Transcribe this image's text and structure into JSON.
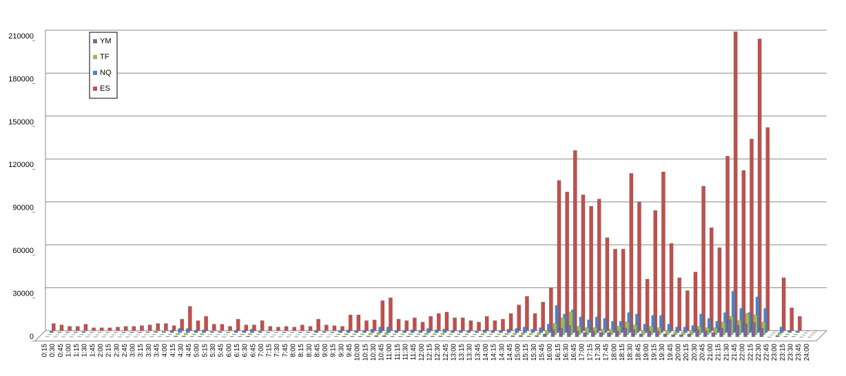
{
  "chart_data": {
    "type": "bar3d",
    "categories": [
      "0:15",
      "0:30",
      "0:45",
      "1:00",
      "1:15",
      "1:30",
      "1:45",
      "2:00",
      "2:15",
      "2:30",
      "2:45",
      "3:00",
      "3:15",
      "3:30",
      "3:45",
      "4:00",
      "4:15",
      "4:30",
      "4:45",
      "5:00",
      "5:15",
      "5:30",
      "5:45",
      "6:00",
      "6:15",
      "6:30",
      "6:45",
      "7:00",
      "7:15",
      "7:30",
      "7:45",
      "8:00",
      "8:15",
      "8:30",
      "8:45",
      "9:00",
      "9:15",
      "9:30",
      "9:45",
      "10:00",
      "10:15",
      "10:30",
      "10:45",
      "11:00",
      "11:15",
      "11:30",
      "11:45",
      "12:00",
      "12:15",
      "12:30",
      "12:45",
      "13:00",
      "13:15",
      "13:30",
      "13:45",
      "14:00",
      "14:15",
      "14:30",
      "14:45",
      "15:00",
      "15:15",
      "15:30",
      "15:45",
      "16:00",
      "16:15",
      "16:30",
      "16:45",
      "17:00",
      "17:15",
      "17:30",
      "17:45",
      "18:00",
      "18:15",
      "18:30",
      "18:45",
      "19:00",
      "19:15",
      "19:30",
      "19:45",
      "20:00",
      "20:15",
      "20:30",
      "20:45",
      "21:00",
      "21:15",
      "21:30",
      "21:45",
      "22:00",
      "22:15",
      "22:30",
      "22:45",
      "23:00",
      "23:15",
      "23:30",
      "23:45",
      "24:00"
    ],
    "series": [
      {
        "name": "YM",
        "color": "#8064a2",
        "values": [
          200,
          100,
          100,
          100,
          200,
          100,
          100,
          100,
          100,
          100,
          100,
          100,
          100,
          200,
          200,
          300,
          600,
          600,
          300,
          400,
          200,
          200,
          100,
          300,
          300,
          500,
          200,
          100,
          100,
          100,
          100,
          100,
          100,
          300,
          200,
          100,
          300,
          500,
          400,
          400,
          600,
          900,
          900,
          400,
          400,
          500,
          400,
          700,
          500,
          600,
          400,
          400,
          400,
          300,
          500,
          400,
          400,
          600,
          800,
          1000,
          600,
          1000,
          2000,
          5000,
          6000,
          8000,
          4000,
          3000,
          4000,
          3000,
          3000,
          4000,
          6000,
          5000,
          2000,
          4000,
          4000,
          2000,
          1500,
          1500,
          2000,
          5000,
          4000,
          3000,
          6000,
          12000,
          8000,
          9000,
          10000,
          6000,
          0,
          1000,
          400,
          300,
          0,
          0
        ]
      },
      {
        "name": "TF",
        "color": "#9bbb59",
        "values": [
          300,
          200,
          200,
          200,
          300,
          100,
          100,
          100,
          100,
          200,
          200,
          200,
          200,
          300,
          300,
          500,
          1000,
          1000,
          500,
          800,
          300,
          300,
          200,
          500,
          500,
          800,
          400,
          200,
          100,
          200,
          100,
          200,
          200,
          500,
          300,
          200,
          500,
          800,
          600,
          600,
          1000,
          1500,
          1500,
          600,
          600,
          800,
          600,
          1200,
          800,
          1000,
          600,
          600,
          600,
          400,
          800,
          600,
          600,
          1000,
          1200,
          1500,
          1000,
          1500,
          3000,
          8000,
          12000,
          16000,
          6000,
          5000,
          5000,
          4000,
          4000,
          6000,
          9000,
          7000,
          3000,
          6000,
          5000,
          3000,
          2000,
          2000,
          3000,
          6000,
          5000,
          5000,
          9000,
          13000,
          10000,
          15000,
          14000,
          9000,
          0,
          1500,
          500,
          400,
          0,
          0
        ]
      },
      {
        "name": "NQ",
        "color": "#4f81bd",
        "values": [
          1000,
          500,
          500,
          500,
          800,
          300,
          300,
          300,
          300,
          500,
          500,
          500,
          600,
          800,
          800,
          1500,
          3000,
          3000,
          1500,
          2000,
          800,
          800,
          500,
          1500,
          1500,
          2500,
          1000,
          500,
          300,
          500,
          300,
          500,
          500,
          1500,
          800,
          500,
          1500,
          2000,
          1500,
          1500,
          2500,
          4000,
          4000,
          1500,
          1500,
          2000,
          1500,
          3000,
          2000,
          2500,
          1500,
          1500,
          1500,
          1000,
          2000,
          1500,
          1500,
          2500,
          3000,
          4000,
          2500,
          3500,
          6000,
          19000,
          13000,
          16000,
          11000,
          9000,
          11000,
          10000,
          8000,
          8000,
          14000,
          13000,
          6000,
          12000,
          12000,
          6000,
          4000,
          4000,
          5000,
          13000,
          10000,
          8000,
          14000,
          29000,
          17000,
          14000,
          25000,
          17000,
          0,
          4000,
          1500,
          1000,
          0,
          0
        ]
      },
      {
        "name": "ES",
        "color": "#c0504d",
        "values": [
          5000,
          4000,
          3000,
          3000,
          4500,
          2000,
          2000,
          2000,
          2500,
          3000,
          3000,
          3500,
          4000,
          5000,
          5000,
          3500,
          8000,
          17000,
          7000,
          10000,
          4500,
          4500,
          3000,
          8000,
          4000,
          4000,
          7000,
          3000,
          2500,
          3000,
          2500,
          4000,
          3000,
          8000,
          4000,
          3500,
          3000,
          11000,
          11000,
          7000,
          7500,
          21000,
          23000,
          8000,
          7000,
          9000,
          6000,
          10000,
          12000,
          13000,
          9000,
          9000,
          7000,
          6000,
          10000,
          7000,
          8000,
          12000,
          18000,
          24000,
          12000,
          20000,
          30000,
          105000,
          97000,
          126000,
          95000,
          87000,
          92000,
          65000,
          57000,
          57000,
          110000,
          90000,
          36000,
          84000,
          111000,
          61000,
          37000,
          28000,
          41000,
          101000,
          72000,
          58000,
          122000,
          209000,
          112000,
          134000,
          204000,
          142000,
          0,
          37000,
          16000,
          10000,
          0,
          0
        ]
      }
    ],
    "ylim": [
      0,
      210000
    ],
    "yticks": [
      0,
      30000,
      60000,
      90000,
      120000,
      150000,
      180000,
      210000
    ],
    "grid": true,
    "legend": "upper-left"
  }
}
